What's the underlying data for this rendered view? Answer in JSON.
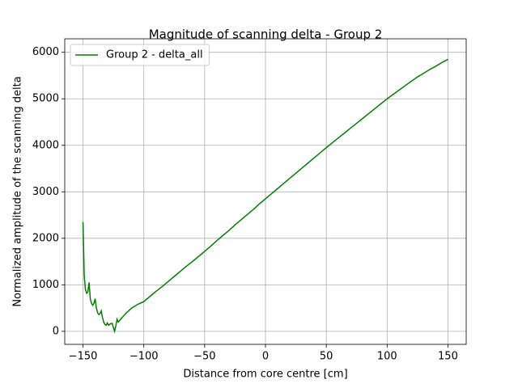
{
  "chart_data": {
    "type": "line",
    "title": "Magnitude of scanning delta - Group 2",
    "x_label": "Distance from core centre [cm]",
    "y_label": "Normalized amplitude of the scanning delta",
    "x": [
      -150,
      -149,
      -148,
      -147,
      -146,
      -145,
      -144,
      -143,
      -142,
      -141,
      -140,
      -139,
      -138,
      -137,
      -136,
      -135,
      -134,
      -133,
      -132,
      -131,
      -130,
      -129,
      -128,
      -127,
      -126,
      -125,
      -124,
      -123,
      -122,
      -121,
      -120,
      -115,
      -110,
      -105,
      -100,
      -95,
      -90,
      -85,
      -80,
      -75,
      -70,
      -65,
      -60,
      -55,
      -50,
      -45,
      -40,
      -35,
      -30,
      -25,
      -20,
      -15,
      -10,
      -5,
      0,
      5,
      10,
      15,
      20,
      25,
      30,
      35,
      40,
      45,
      50,
      55,
      60,
      65,
      70,
      75,
      80,
      85,
      90,
      95,
      100,
      105,
      110,
      115,
      120,
      125,
      130,
      135,
      140,
      145,
      150
    ],
    "series": [
      {
        "name": "Group 2 - delta_all",
        "color": "#008000",
        "values": [
          2350,
          1200,
          900,
          820,
          850,
          1050,
          700,
          600,
          560,
          600,
          700,
          500,
          400,
          360,
          380,
          440,
          300,
          200,
          150,
          130,
          180,
          130,
          150,
          170,
          170,
          80,
          0,
          120,
          260,
          200,
          230,
          380,
          500,
          580,
          640,
          750,
          860,
          960,
          1070,
          1180,
          1290,
          1400,
          1500,
          1610,
          1720,
          1830,
          1950,
          2060,
          2170,
          2290,
          2400,
          2510,
          2620,
          2740,
          2850,
          2960,
          3070,
          3180,
          3290,
          3400,
          3510,
          3620,
          3730,
          3840,
          3950,
          4055,
          4160,
          4265,
          4370,
          4475,
          4580,
          4685,
          4790,
          4895,
          5000,
          5095,
          5190,
          5285,
          5380,
          5470,
          5550,
          5630,
          5700,
          5780,
          5850
        ]
      }
    ],
    "xlim": [
      -165,
      165
    ],
    "ylim": [
      -280,
      6290
    ],
    "xticks": [
      {
        "value": -150,
        "label": "−150"
      },
      {
        "value": -100,
        "label": "−100"
      },
      {
        "value": -50,
        "label": "−50"
      },
      0,
      50,
      100,
      150
    ],
    "yticks": [
      0,
      1000,
      2000,
      3000,
      4000,
      5000,
      6000
    ],
    "grid": true,
    "legend": "upper left"
  }
}
